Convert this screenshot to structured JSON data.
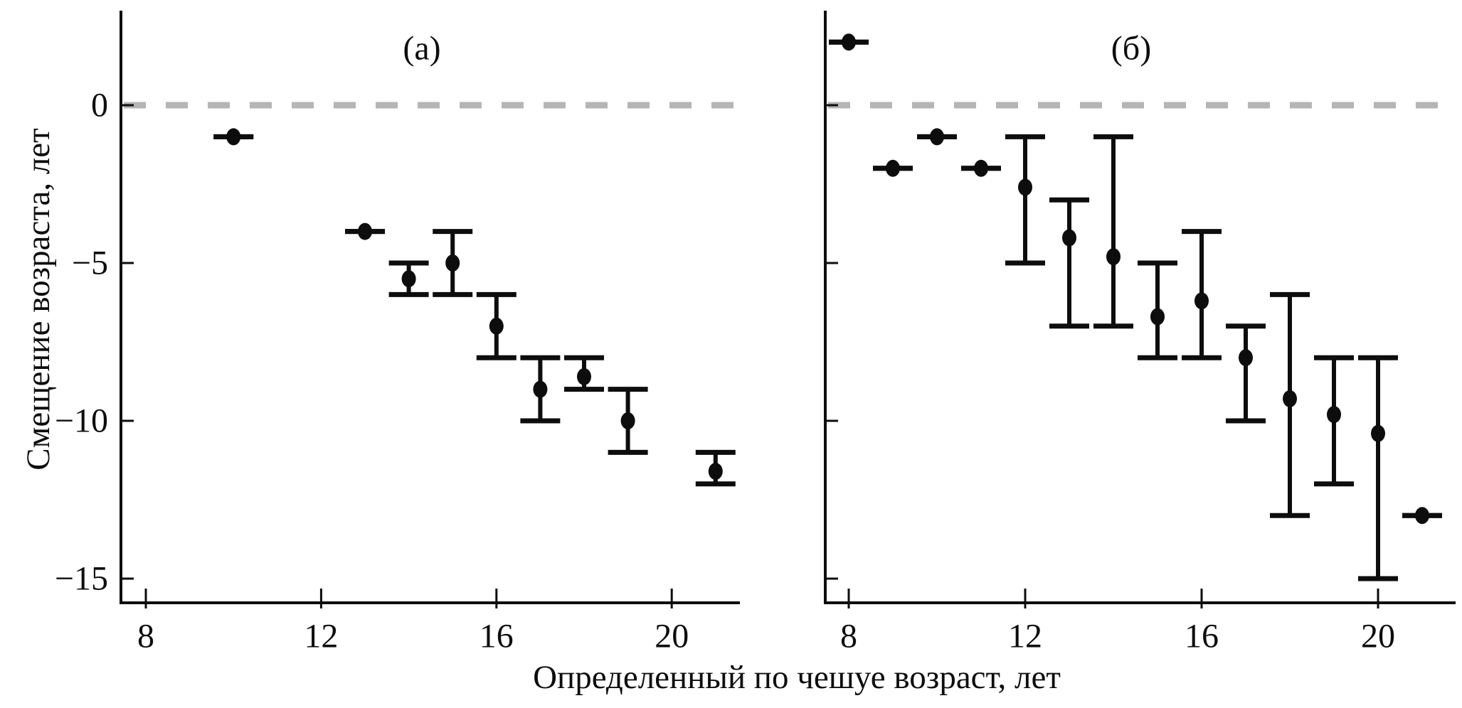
{
  "figure": {
    "y_axis_title": "Смещение возраста, лет",
    "x_axis_title": "Определенный по чешуе возраст, лет",
    "ink_color": "#0d0d0d",
    "zero_line_color": "#b5b5b5",
    "background": "#ffffff"
  },
  "chart_data": [
    {
      "type": "scatter",
      "panel_label": "(а)",
      "xlabel": "Определенный по чешуе возраст, лет",
      "ylabel": "Смещение возраста, лет",
      "x_ticks": [
        8,
        12,
        16,
        20
      ],
      "x_tick_labels": [
        "8",
        "12",
        "16",
        "20"
      ],
      "y_ticks": [
        0,
        -5,
        -10,
        -15
      ],
      "y_tick_labels": [
        "0",
        "−5",
        "−10",
        "−15"
      ],
      "xlim": [
        7.4,
        21.6
      ],
      "ylim": [
        -15.7,
        3.0
      ],
      "zero_line": 0,
      "grid": false,
      "legend": null,
      "points": [
        {
          "x": 10,
          "y": -1.0,
          "lo": -1.0,
          "hi": -1.0
        },
        {
          "x": 13,
          "y": -4.0,
          "lo": -4.0,
          "hi": -4.0
        },
        {
          "x": 14,
          "y": -5.5,
          "lo": -6.0,
          "hi": -5.0
        },
        {
          "x": 15,
          "y": -5.0,
          "lo": -6.0,
          "hi": -4.0
        },
        {
          "x": 16,
          "y": -7.0,
          "lo": -8.0,
          "hi": -6.0
        },
        {
          "x": 17,
          "y": -9.0,
          "lo": -10.0,
          "hi": -8.0
        },
        {
          "x": 18,
          "y": -8.6,
          "lo": -9.0,
          "hi": -8.0
        },
        {
          "x": 19,
          "y": -10.0,
          "lo": -11.0,
          "hi": -9.0
        },
        {
          "x": 21,
          "y": -11.6,
          "lo": -12.0,
          "hi": -11.0
        }
      ]
    },
    {
      "type": "scatter",
      "panel_label": "(б)",
      "xlabel": "Определенный по чешуе возраст, лет",
      "ylabel": "Смещение возраста, лет",
      "x_ticks": [
        8,
        12,
        16,
        20
      ],
      "x_tick_labels": [
        "8",
        "12",
        "16",
        "20"
      ],
      "y_ticks": [
        0,
        -5,
        -10,
        -15
      ],
      "y_tick_labels": [
        "0",
        "−5",
        "−10",
        "−15"
      ],
      "xlim": [
        7.5,
        21.8
      ],
      "ylim": [
        -15.7,
        3.0
      ],
      "zero_line": 0,
      "grid": false,
      "legend": null,
      "points": [
        {
          "x": 8,
          "y": 2.0,
          "lo": 2.0,
          "hi": 2.0
        },
        {
          "x": 9,
          "y": -2.0,
          "lo": -2.0,
          "hi": -2.0
        },
        {
          "x": 10,
          "y": -1.0,
          "lo": -1.0,
          "hi": -1.0
        },
        {
          "x": 11,
          "y": -2.0,
          "lo": -2.0,
          "hi": -2.0
        },
        {
          "x": 12,
          "y": -2.6,
          "lo": -5.0,
          "hi": -1.0
        },
        {
          "x": 13,
          "y": -4.2,
          "lo": -7.0,
          "hi": -3.0
        },
        {
          "x": 14,
          "y": -4.8,
          "lo": -7.0,
          "hi": -1.0
        },
        {
          "x": 15,
          "y": -6.7,
          "lo": -8.0,
          "hi": -5.0
        },
        {
          "x": 16,
          "y": -6.2,
          "lo": -8.0,
          "hi": -4.0
        },
        {
          "x": 17,
          "y": -8.0,
          "lo": -10.0,
          "hi": -7.0
        },
        {
          "x": 18,
          "y": -9.3,
          "lo": -13.0,
          "hi": -6.0
        },
        {
          "x": 19,
          "y": -9.8,
          "lo": -12.0,
          "hi": -8.0
        },
        {
          "x": 20,
          "y": -10.4,
          "lo": -15.0,
          "hi": -8.0
        },
        {
          "x": 21,
          "y": -13.0,
          "lo": -13.0,
          "hi": -13.0
        }
      ]
    }
  ]
}
